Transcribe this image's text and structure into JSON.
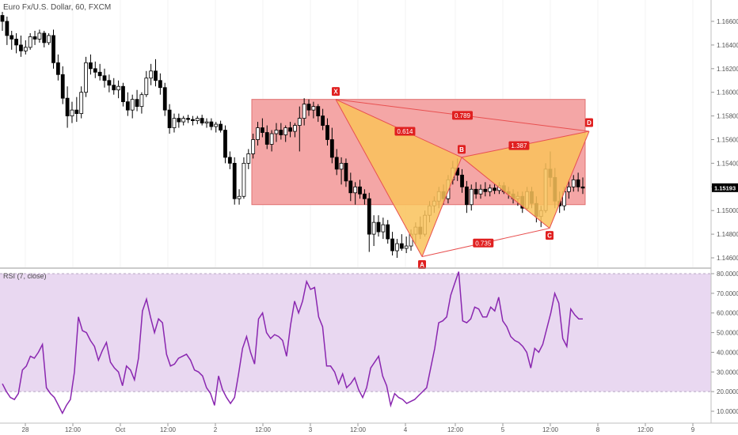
{
  "chart_data": [
    {
      "type": "candlestick",
      "title": "Euro Fx/U.S. Dollar, 60, FXCM",
      "ylim": [
        1.1455,
        1.168
      ],
      "y_ticks": [
        "1.16600",
        "1.16400",
        "1.16200",
        "1.16000",
        "1.15800",
        "1.15600",
        "1.15400",
        "1.15200",
        "1.15000",
        "1.14800",
        "1.14600"
      ],
      "last_price": "1.15193",
      "x_labels": [
        "28",
        "12:00",
        "Oct",
        "12:00",
        "2",
        "12:00",
        "3",
        "12:00",
        "4",
        "12:00",
        "5",
        "12:00",
        "8",
        "12:00",
        "9"
      ],
      "ohlc": [
        [
          1.1665,
          1.1668,
          1.1652,
          1.166
        ],
        [
          1.166,
          1.1664,
          1.164,
          1.1648
        ],
        [
          1.1648,
          1.1652,
          1.1636,
          1.1645
        ],
        [
          1.1645,
          1.165,
          1.1633,
          1.164
        ],
        [
          1.164,
          1.1648,
          1.163,
          1.1635
        ],
        [
          1.1635,
          1.1644,
          1.1632,
          1.1638
        ],
        [
          1.1638,
          1.165,
          1.1636,
          1.1647
        ],
        [
          1.1647,
          1.1652,
          1.164,
          1.1645
        ],
        [
          1.1645,
          1.1653,
          1.1642,
          1.165
        ],
        [
          1.165,
          1.1652,
          1.1638,
          1.1642
        ],
        [
          1.1642,
          1.165,
          1.164,
          1.1648
        ],
        [
          1.1648,
          1.1653,
          1.162,
          1.1625
        ],
        [
          1.1625,
          1.1632,
          1.161,
          1.1615
        ],
        [
          1.1615,
          1.1622,
          1.159,
          1.1595
        ],
        [
          1.1595,
          1.1605,
          1.157,
          1.158
        ],
        [
          1.158,
          1.1592,
          1.1574,
          1.1585
        ],
        [
          1.1585,
          1.1596,
          1.1575,
          1.1582
        ],
        [
          1.1582,
          1.1605,
          1.1578,
          1.16
        ],
        [
          1.16,
          1.163,
          1.1596,
          1.1625
        ],
        [
          1.1625,
          1.1632,
          1.1615,
          1.162
        ],
        [
          1.162,
          1.1626,
          1.1612,
          1.1617
        ],
        [
          1.1617,
          1.1624,
          1.161,
          1.1614
        ],
        [
          1.1614,
          1.162,
          1.1604,
          1.161
        ],
        [
          1.161,
          1.1615,
          1.16,
          1.1606
        ],
        [
          1.1606,
          1.1612,
          1.1598,
          1.1602
        ],
        [
          1.1602,
          1.161,
          1.1595,
          1.1605
        ],
        [
          1.1605,
          1.1608,
          1.1588,
          1.1592
        ],
        [
          1.1592,
          1.16,
          1.158,
          1.1585
        ],
        [
          1.1585,
          1.1598,
          1.1578,
          1.1594
        ],
        [
          1.1594,
          1.1602,
          1.1584,
          1.1588
        ],
        [
          1.1588,
          1.16,
          1.1582,
          1.1598
        ],
        [
          1.1598,
          1.1618,
          1.1596,
          1.1612
        ],
        [
          1.1612,
          1.1624,
          1.1606,
          1.1618
        ],
        [
          1.1618,
          1.1628,
          1.1605,
          1.161
        ],
        [
          1.161,
          1.1616,
          1.1598,
          1.1604
        ],
        [
          1.1604,
          1.1608,
          1.158,
          1.1585
        ],
        [
          1.1585,
          1.159,
          1.1565,
          1.157
        ],
        [
          1.157,
          1.1582,
          1.1566,
          1.1578
        ],
        [
          1.1578,
          1.1582,
          1.157,
          1.1575
        ],
        [
          1.1575,
          1.158,
          1.1572,
          1.1578
        ],
        [
          1.1578,
          1.1581,
          1.1574,
          1.1577
        ],
        [
          1.1577,
          1.158,
          1.1572,
          1.1576
        ],
        [
          1.1576,
          1.158,
          1.1573,
          1.1578
        ],
        [
          1.1578,
          1.1581,
          1.1572,
          1.1574
        ],
        [
          1.1574,
          1.1578,
          1.157,
          1.1575
        ],
        [
          1.1575,
          1.1578,
          1.1568,
          1.1571
        ],
        [
          1.1571,
          1.1575,
          1.1566,
          1.1573
        ],
        [
          1.1573,
          1.1576,
          1.1566,
          1.1568
        ],
        [
          1.1568,
          1.1572,
          1.154,
          1.1545
        ],
        [
          1.1545,
          1.155,
          1.1535,
          1.154
        ],
        [
          1.154,
          1.1545,
          1.1505,
          1.151
        ],
        [
          1.151,
          1.1518,
          1.1505,
          1.1512
        ],
        [
          1.1512,
          1.1545,
          1.151,
          1.154
        ],
        [
          1.154,
          1.1552,
          1.1535,
          1.1548
        ],
        [
          1.1548,
          1.1565,
          1.1544,
          1.156
        ],
        [
          1.156,
          1.1575,
          1.1555,
          1.157
        ],
        [
          1.157,
          1.1578,
          1.1562,
          1.1566
        ],
        [
          1.1566,
          1.1572,
          1.1552,
          1.1556
        ],
        [
          1.1556,
          1.1568,
          1.155,
          1.1565
        ],
        [
          1.1565,
          1.1574,
          1.1558,
          1.1568
        ],
        [
          1.1568,
          1.1574,
          1.156,
          1.1564
        ],
        [
          1.1564,
          1.1572,
          1.1558,
          1.157
        ],
        [
          1.157,
          1.1575,
          1.1562,
          1.1567
        ],
        [
          1.1567,
          1.1574,
          1.1562,
          1.1572
        ],
        [
          1.1572,
          1.1588,
          1.155,
          1.1578
        ],
        [
          1.1578,
          1.1595,
          1.1572,
          1.159
        ],
        [
          1.159,
          1.1594,
          1.158,
          1.1585
        ],
        [
          1.1585,
          1.1592,
          1.1578,
          1.1588
        ],
        [
          1.1588,
          1.159,
          1.1575,
          1.158
        ],
        [
          1.158,
          1.1586,
          1.1568,
          1.1572
        ],
        [
          1.1572,
          1.1578,
          1.1555,
          1.156
        ],
        [
          1.156,
          1.157,
          1.154,
          1.1545
        ],
        [
          1.1545,
          1.1552,
          1.153,
          1.1535
        ],
        [
          1.1535,
          1.1545,
          1.1522,
          1.154
        ],
        [
          1.154,
          1.1544,
          1.152,
          1.1525
        ],
        [
          1.1525,
          1.1532,
          1.1508,
          1.1515
        ],
        [
          1.1515,
          1.1524,
          1.1505,
          1.152
        ],
        [
          1.152,
          1.1526,
          1.151,
          1.1514
        ],
        [
          1.1514,
          1.1518,
          1.1505,
          1.151
        ],
        [
          1.151,
          1.1515,
          1.1465,
          1.148
        ],
        [
          1.148,
          1.1496,
          1.147,
          1.149
        ],
        [
          1.149,
          1.1496,
          1.1478,
          1.1482
        ],
        [
          1.1482,
          1.1494,
          1.1476,
          1.1488
        ],
        [
          1.1488,
          1.1492,
          1.1472,
          1.1476
        ],
        [
          1.1476,
          1.1482,
          1.1462,
          1.1466
        ],
        [
          1.1466,
          1.1476,
          1.146,
          1.1472
        ],
        [
          1.1472,
          1.148,
          1.1466,
          1.1468
        ],
        [
          1.1468,
          1.1478,
          1.1464,
          1.147
        ],
        [
          1.147,
          1.1484,
          1.1466,
          1.148
        ],
        [
          1.148,
          1.149,
          1.1472,
          1.1486
        ],
        [
          1.1486,
          1.1495,
          1.1476,
          1.148
        ],
        [
          1.148,
          1.15,
          1.1478,
          1.1496
        ],
        [
          1.1496,
          1.1508,
          1.149,
          1.1504
        ],
        [
          1.1504,
          1.1512,
          1.1498,
          1.1508
        ],
        [
          1.1508,
          1.152,
          1.1502,
          1.1516
        ],
        [
          1.1516,
          1.1522,
          1.1505,
          1.151
        ],
        [
          1.151,
          1.153,
          1.1506,
          1.1526
        ],
        [
          1.1526,
          1.1542,
          1.1522,
          1.1536
        ],
        [
          1.1536,
          1.1544,
          1.1525,
          1.153
        ],
        [
          1.153,
          1.1535,
          1.1515,
          1.152
        ],
        [
          1.152,
          1.1525,
          1.1498,
          1.1505
        ],
        [
          1.1505,
          1.1522,
          1.15,
          1.1518
        ],
        [
          1.1518,
          1.1524,
          1.151,
          1.1514
        ],
        [
          1.1514,
          1.1522,
          1.151,
          1.1518
        ],
        [
          1.1518,
          1.1524,
          1.1512,
          1.1516
        ],
        [
          1.1516,
          1.1522,
          1.1512,
          1.1519
        ],
        [
          1.1519,
          1.1523,
          1.1514,
          1.1517
        ],
        [
          1.1517,
          1.1524,
          1.1514,
          1.1521
        ],
        [
          1.1521,
          1.1524,
          1.1514,
          1.1516
        ],
        [
          1.1516,
          1.152,
          1.151,
          1.1514
        ],
        [
          1.1514,
          1.1518,
          1.1506,
          1.151
        ],
        [
          1.151,
          1.1516,
          1.1504,
          1.1512
        ],
        [
          1.1512,
          1.1516,
          1.1498,
          1.1502
        ],
        [
          1.1502,
          1.152,
          1.15,
          1.1516
        ],
        [
          1.1516,
          1.152,
          1.1502,
          1.1506
        ],
        [
          1.1506,
          1.1512,
          1.149,
          1.1495
        ],
        [
          1.1495,
          1.1504,
          1.1486,
          1.15
        ],
        [
          1.15,
          1.154,
          1.1498,
          1.1535
        ],
        [
          1.1535,
          1.155,
          1.152,
          1.1528
        ],
        [
          1.1528,
          1.1536,
          1.1502,
          1.1508
        ],
        [
          1.1508,
          1.1516,
          1.1498,
          1.1504
        ],
        [
          1.1504,
          1.152,
          1.15,
          1.1516
        ],
        [
          1.1516,
          1.1526,
          1.151,
          1.152
        ],
        [
          1.152,
          1.153,
          1.1516,
          1.1526
        ],
        [
          1.1526,
          1.1532,
          1.1516,
          1.152
        ],
        [
          1.152,
          1.1528,
          1.1514,
          1.1519
        ]
      ]
    },
    {
      "type": "line",
      "title": "RSI (7, close)",
      "ylim": [
        5,
        83
      ],
      "y_ticks": [
        "80.0000",
        "70.0000",
        "60.0000",
        "50.0000",
        "40.0000",
        "30.0000",
        "20.0000",
        "10.0000"
      ],
      "bands": [
        20,
        80
      ],
      "series": [
        {
          "values": [
            24,
            20,
            17,
            16,
            19,
            31,
            33,
            38,
            37,
            40,
            44,
            22,
            19,
            17,
            13,
            9,
            13,
            16,
            30,
            58,
            51,
            50,
            46,
            43,
            36,
            41,
            45,
            35,
            32,
            30,
            23,
            33,
            31,
            26,
            37,
            61,
            67,
            58,
            50,
            57,
            55,
            39,
            33,
            34,
            37,
            38,
            39,
            36,
            31,
            30,
            28,
            22,
            19,
            13,
            28,
            21,
            17,
            14,
            17,
            29,
            42,
            48,
            40,
            34,
            57,
            60,
            50,
            47,
            49,
            48,
            46,
            38,
            54,
            66,
            60,
            66,
            76,
            72,
            73,
            58,
            53,
            33,
            33,
            30,
            24,
            29,
            22,
            24,
            27,
            21,
            17,
            22,
            32,
            35,
            38,
            28,
            23,
            13,
            19,
            17,
            16,
            14,
            15,
            16,
            18,
            20,
            22,
            32,
            42,
            55,
            56,
            58,
            69,
            75,
            81,
            56,
            55,
            57,
            63,
            62,
            58,
            58,
            63,
            61,
            68,
            56,
            53,
            48,
            46,
            45,
            43,
            40,
            32,
            42,
            40,
            44,
            52,
            60,
            70,
            65,
            47,
            43,
            62,
            59,
            57,
            57
          ]
        }
      ]
    }
  ],
  "annotations": {
    "points": [
      "X",
      "A",
      "B",
      "C",
      "D"
    ],
    "ratios": [
      "0.614",
      "0.789",
      "1.387",
      "0.735"
    ]
  },
  "colors": {
    "up": "#ffffff",
    "down": "#000000",
    "wick": "#000000",
    "zone_fill": "#f4a6a6",
    "zone_stroke": "#e07070",
    "pattern_fill": "#f9c25a",
    "pattern_fill_light": "#f5e88a",
    "pattern_line": "#e85050",
    "label_bg": "#e02020",
    "rsi_bg": "#e9d8f1",
    "rsi_line": "#8a27b0",
    "last_price_bg": "#000000",
    "band_line": "#b8a8c4"
  }
}
